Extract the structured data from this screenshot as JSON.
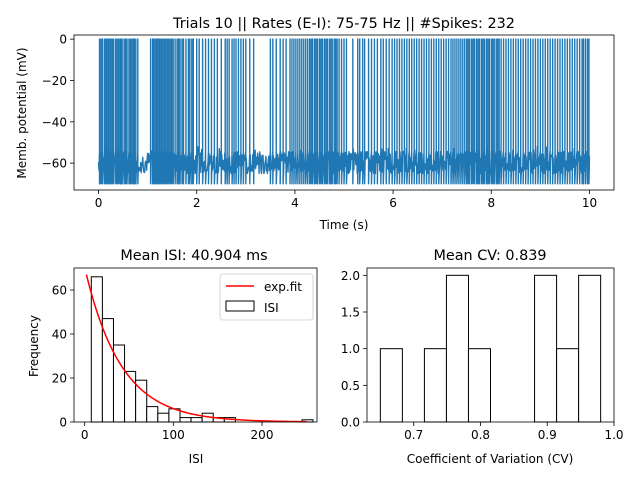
{
  "chart_data": [
    {
      "type": "line",
      "title": "Trials 10 || Rates (E-I): 75-75 Hz || #Spikes: 232",
      "xlabel": "Time (s)",
      "ylabel": "Memb. potential (mV)",
      "xlim": [
        -0.5,
        10.5
      ],
      "ylim": [
        -73,
        2
      ],
      "xticks": [
        0,
        2,
        4,
        6,
        8,
        10
      ],
      "xtick_labels": [
        "0",
        "2",
        "4",
        "6",
        "8",
        "10"
      ],
      "yticks": [
        0,
        -20,
        -40,
        -60
      ],
      "ytick_labels": [
        "0",
        "−20",
        "−40",
        "−60"
      ],
      "series": [
        {
          "color": "#1f77b4",
          "spike_peak_mv": 0,
          "reset_mv": -70,
          "baseline_mv": -60,
          "subthreshold_range_mv": [
            -65,
            -52
          ],
          "spike_times_s": [
            0.02,
            0.05,
            0.08,
            0.12,
            0.15,
            0.17,
            0.2,
            0.23,
            0.25,
            0.28,
            0.31,
            0.35,
            0.38,
            0.41,
            0.44,
            0.46,
            0.48,
            0.52,
            0.55,
            0.58,
            0.62,
            0.65,
            0.68,
            0.71,
            0.73,
            0.76,
            0.8,
            1.06,
            1.1,
            1.12,
            1.15,
            1.18,
            1.2,
            1.23,
            1.25,
            1.28,
            1.31,
            1.34,
            1.37,
            1.4,
            1.43,
            1.46,
            1.49,
            1.52,
            1.56,
            1.6,
            1.63,
            1.66,
            1.7,
            1.73,
            1.78,
            1.83,
            1.86,
            1.9,
            1.93,
            2.0,
            2.05,
            2.12,
            2.18,
            2.24,
            2.3,
            2.36,
            2.42,
            2.5,
            2.58,
            2.62,
            2.66,
            2.72,
            2.76,
            2.8,
            2.85,
            2.9,
            2.95,
            3.0,
            3.08,
            3.16,
            3.5,
            3.55,
            3.62,
            3.7,
            3.76,
            3.82,
            3.9,
            3.94,
            3.98,
            4.02,
            4.06,
            4.1,
            4.14,
            4.18,
            4.22,
            4.26,
            4.3,
            4.33,
            4.36,
            4.4,
            4.43,
            4.46,
            4.5,
            4.53,
            4.56,
            4.6,
            4.63,
            4.66,
            4.7,
            4.73,
            4.76,
            4.8,
            4.83,
            4.86,
            4.9,
            4.95,
            5.0,
            5.05,
            5.18,
            5.28,
            5.32,
            5.38,
            5.42,
            5.5,
            5.56,
            5.62,
            5.68,
            5.75,
            5.8,
            5.86,
            5.92,
            5.98,
            6.03,
            6.08,
            6.13,
            6.18,
            6.23,
            6.28,
            6.33,
            6.38,
            6.43,
            6.48,
            6.53,
            6.58,
            6.63,
            6.68,
            6.73,
            6.78,
            6.83,
            6.88,
            6.93,
            6.98,
            7.03,
            7.08,
            7.13,
            7.18,
            7.22,
            7.26,
            7.3,
            7.34,
            7.38,
            7.42,
            7.46,
            7.5,
            7.53,
            7.56,
            7.6,
            7.63,
            7.66,
            7.7,
            7.73,
            7.76,
            7.8,
            7.83,
            7.86,
            7.9,
            7.93,
            7.96,
            8.0,
            8.03,
            8.06,
            8.1,
            8.13,
            8.16,
            8.2,
            8.25,
            8.3,
            8.35,
            8.4,
            8.45,
            8.5,
            8.55,
            8.6,
            8.65,
            8.7,
            8.75,
            8.8,
            8.85,
            8.9,
            8.95,
            9.0,
            9.05,
            9.1,
            9.15,
            9.2,
            9.25,
            9.3,
            9.35,
            9.4,
            9.45,
            9.5,
            9.55,
            9.6,
            9.65,
            9.7,
            9.75,
            9.8,
            9.85,
            9.88,
            9.92,
            9.96,
            9.99
          ]
        }
      ]
    },
    {
      "type": "bar",
      "title": "Mean ISI: 40.904 ms",
      "xlabel": "ISI",
      "ylabel": "Frequency",
      "xlim": [
        -12,
        262
      ],
      "ylim": [
        0,
        70
      ],
      "xticks": [
        0,
        100,
        200
      ],
      "xtick_labels": [
        "0",
        "100",
        "200"
      ],
      "yticks": [
        0,
        20,
        40,
        60
      ],
      "ytick_labels": [
        "0",
        "20",
        "40",
        "60"
      ],
      "bin_edges": [
        7.5,
        20,
        32.5,
        45,
        57.5,
        70,
        82.5,
        95,
        107.5,
        120,
        132.5,
        145,
        157.5,
        170,
        182.5,
        195,
        207.5,
        220,
        232.5,
        245,
        257.5
      ],
      "values": [
        66,
        47,
        35,
        23,
        19,
        7,
        4,
        6,
        2,
        2,
        4,
        2,
        2,
        0,
        0,
        0,
        0,
        0,
        0,
        1
      ],
      "fit": {
        "name": "exp.fit",
        "color": "#ff0000",
        "amplitude": 67,
        "tau": 40.9,
        "x_range": [
          2,
          250
        ]
      },
      "legend": {
        "placement": "top-right",
        "entries": [
          "exp.fit",
          "ISI"
        ]
      }
    },
    {
      "type": "bar",
      "title": "Mean CV: 0.839",
      "xlabel": "Coefficient of Variation (CV)",
      "ylabel": "",
      "xlim": [
        0.63,
        1.0
      ],
      "ylim": [
        0,
        2.1
      ],
      "xticks": [
        0.7,
        0.8,
        0.9,
        1.0
      ],
      "xtick_labels": [
        "0.7",
        "0.8",
        "0.9",
        "1.0"
      ],
      "yticks": [
        0,
        0.5,
        1,
        1.5,
        2
      ],
      "ytick_labels": [
        "0.0",
        "0.5",
        "1.0",
        "1.5",
        "2.0"
      ],
      "bin_edges": [
        0.65,
        0.683,
        0.716,
        0.749,
        0.782,
        0.815,
        0.848,
        0.881,
        0.914,
        0.947,
        0.98
      ],
      "values": [
        1,
        0,
        1,
        2,
        1,
        0,
        0,
        2,
        1,
        2
      ]
    }
  ]
}
